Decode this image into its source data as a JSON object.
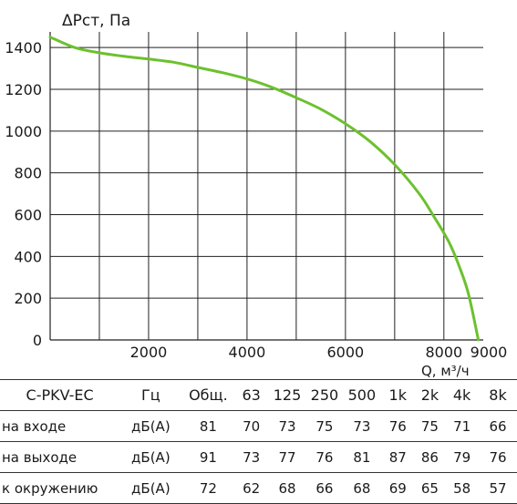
{
  "chart_data": {
    "type": "line",
    "ylabel": "ΔPст, Па",
    "xlabel": "Q, м³/ч",
    "xlim": [
      0,
      9000
    ],
    "ylim": [
      0,
      1450
    ],
    "x_ticks": [
      2000,
      4000,
      6000,
      8000,
      9000
    ],
    "y_ticks": [
      0,
      200,
      400,
      600,
      800,
      1000,
      1200,
      1400
    ],
    "grid": true,
    "series": [
      {
        "color": "#6cc12e",
        "x": [
          0,
          500,
          1000,
          1500,
          2000,
          2500,
          3000,
          3500,
          4000,
          4500,
          5000,
          5500,
          6000,
          6500,
          7000,
          7500,
          7800,
          8100,
          8300,
          8500,
          8700
        ],
        "y": [
          1450,
          1400,
          1375,
          1358,
          1345,
          1330,
          1305,
          1280,
          1250,
          1210,
          1160,
          1105,
          1035,
          950,
          840,
          700,
          590,
          470,
          360,
          220,
          0
        ]
      }
    ]
  },
  "table": {
    "model": "C-PKV-EC",
    "unit_header": "Гц",
    "headers": [
      "Общ.",
      "63",
      "125",
      "250",
      "500",
      "1k",
      "2k",
      "4k",
      "8k"
    ],
    "rows": [
      {
        "label": "на входе",
        "unit": "дБ(А)",
        "values": [
          "81",
          "70",
          "73",
          "75",
          "73",
          "76",
          "75",
          "71",
          "66"
        ]
      },
      {
        "label": "на выходе",
        "unit": "дБ(А)",
        "values": [
          "91",
          "73",
          "77",
          "76",
          "81",
          "87",
          "86",
          "79",
          "76"
        ]
      },
      {
        "label": "к окружению",
        "unit": "дБ(А)",
        "values": [
          "72",
          "62",
          "68",
          "66",
          "68",
          "69",
          "65",
          "58",
          "57"
        ]
      }
    ]
  }
}
